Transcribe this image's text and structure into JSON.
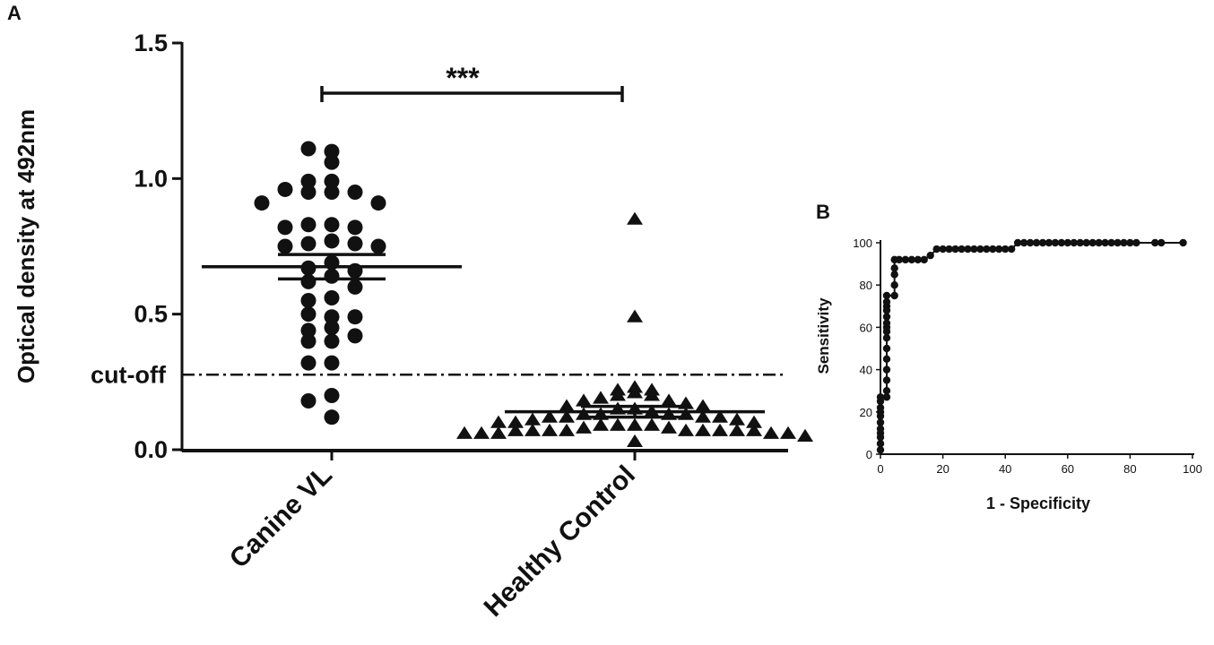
{
  "panels": {
    "a": "A",
    "b": "B"
  },
  "chart_data": [
    {
      "type": "scatter",
      "panel": "A",
      "ylabel": "Optical density at 492nm",
      "ylim": [
        0,
        1.5
      ],
      "yticks": [
        {
          "value": 0.0,
          "label": "0.0"
        },
        {
          "value": 0.5,
          "label": "0.5"
        },
        {
          "value": 1.0,
          "label": "1.0"
        },
        {
          "value": 1.5,
          "label": "1.5"
        }
      ],
      "categories": [
        "Canine VL",
        "Healthy Control"
      ],
      "significance": "***",
      "cutoff": {
        "value": 0.28,
        "label": "cut-off"
      },
      "series": [
        {
          "name": "Canine VL",
          "marker": "circle",
          "mean": 0.675,
          "sem": 0.045,
          "values": [
            1.1,
            1.11,
            1.06,
            0.99,
            0.99,
            0.95,
            0.95,
            0.95,
            0.96,
            0.91,
            0.91,
            0.83,
            0.83,
            0.82,
            0.82,
            0.77,
            0.76,
            0.76,
            0.75,
            0.75,
            0.69,
            0.67,
            0.64,
            0.66,
            0.62,
            0.6,
            0.56,
            0.55,
            0.49,
            0.5,
            0.49,
            0.45,
            0.44,
            0.42,
            0.4,
            0.4,
            0.32,
            0.32,
            0.2,
            0.18,
            0.12
          ]
        },
        {
          "name": "Healthy Control",
          "marker": "triangle",
          "mean": 0.14,
          "sem": 0.02,
          "values": [
            0.85,
            0.49,
            0.23,
            0.22,
            0.22,
            0.21,
            0.2,
            0.2,
            0.19,
            0.18,
            0.18,
            0.17,
            0.16,
            0.16,
            0.15,
            0.15,
            0.14,
            0.13,
            0.13,
            0.13,
            0.13,
            0.12,
            0.12,
            0.12,
            0.12,
            0.11,
            0.11,
            0.1,
            0.1,
            0.1,
            0.09,
            0.09,
            0.09,
            0.09,
            0.08,
            0.08,
            0.07,
            0.07,
            0.07,
            0.07,
            0.07,
            0.07,
            0.07,
            0.07,
            0.07,
            0.06,
            0.06,
            0.06,
            0.06,
            0.06,
            0.05,
            0.03
          ]
        }
      ]
    },
    {
      "type": "line",
      "panel": "B",
      "xlabel": "1 - Specificity",
      "ylabel": "Sensitivity",
      "xlim": [
        0,
        100
      ],
      "ylim": [
        0,
        100
      ],
      "xticks": [
        0,
        20,
        40,
        60,
        80,
        100
      ],
      "yticks": [
        0,
        20,
        40,
        60,
        80,
        100
      ],
      "x": [
        0,
        0,
        0,
        0,
        0,
        0,
        0,
        0,
        0,
        0,
        0,
        2,
        2,
        2,
        2,
        2,
        2,
        2,
        2,
        2,
        2,
        2,
        2,
        2,
        2,
        2,
        4.5,
        4.5,
        4.5,
        4.5,
        4.5,
        6,
        8,
        10,
        12,
        14,
        16,
        18,
        20,
        22,
        24,
        26,
        28,
        30,
        32,
        34,
        36,
        38,
        40,
        42,
        44,
        46,
        48,
        50,
        52,
        54,
        56,
        58,
        60,
        62,
        64,
        66,
        68,
        70,
        72,
        74,
        76,
        78,
        80,
        82,
        88,
        90,
        97
      ],
      "y": [
        2,
        5,
        8,
        10,
        12,
        15,
        18,
        20,
        22,
        25,
        27,
        27,
        30,
        35,
        40,
        45,
        50,
        55,
        58,
        60,
        62,
        65,
        68,
        70,
        72,
        75,
        75,
        80,
        85,
        88,
        92,
        92,
        92,
        92,
        92,
        92,
        94,
        97,
        97,
        97,
        97,
        97,
        97,
        97,
        97,
        97,
        97,
        97,
        97,
        97,
        100,
        100,
        100,
        100,
        100,
        100,
        100,
        100,
        100,
        100,
        100,
        100,
        100,
        100,
        100,
        100,
        100,
        100,
        100,
        100,
        100,
        100,
        100
      ]
    }
  ]
}
